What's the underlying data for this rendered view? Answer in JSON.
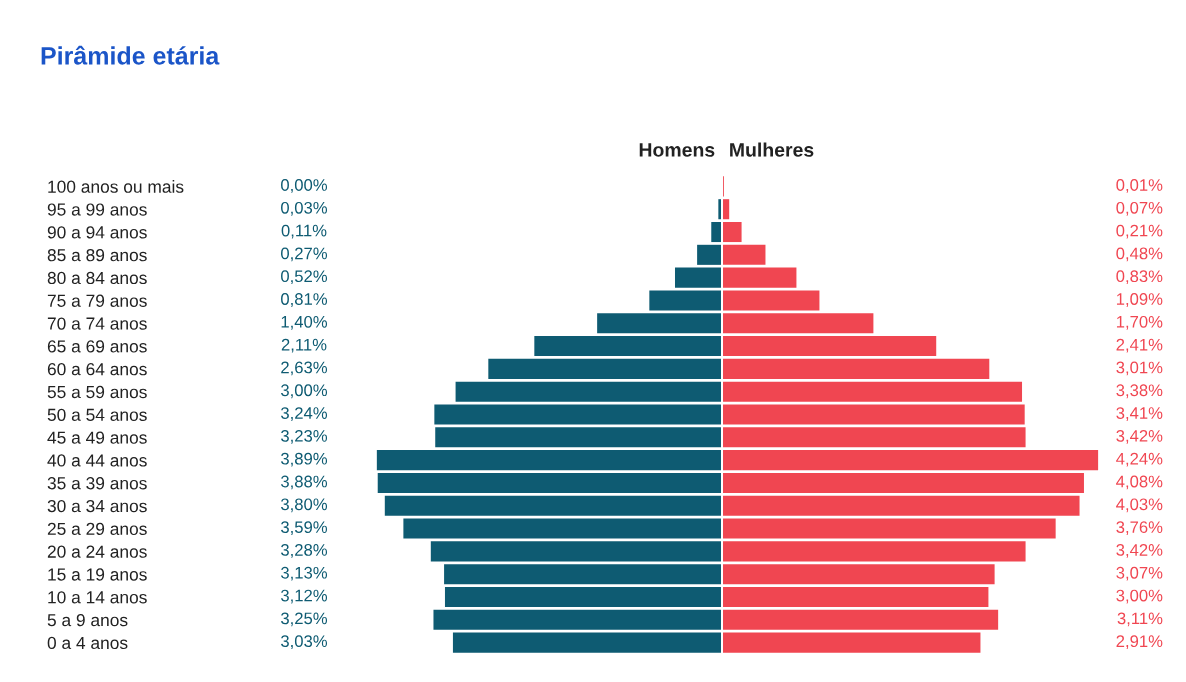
{
  "chart_data": [
    {
      "type": "bar",
      "orientation": "horizontal",
      "title": "Pirâmide etária",
      "categories": [
        "100 anos ou mais",
        "95 a 99 anos",
        "90 a 94 anos",
        "85 a 89 anos",
        "80 a 84 anos",
        "75 a 79 anos",
        "70 a 74 anos",
        "65 a 69 anos",
        "60 a 64 anos",
        "55 a 59 anos",
        "50 a 54 anos",
        "45 a 49 anos",
        "40 a 44 anos",
        "35 a 39 anos",
        "30 a 34 anos",
        "25 a 29 anos",
        "20 a 24 anos",
        "15 a 19 anos",
        "10 a 14 anos",
        "5 a 9 anos",
        "0 a 4 anos"
      ],
      "series": [
        {
          "name": "Homens",
          "color": "#0e5b72",
          "values": [
            0.0,
            0.03,
            0.11,
            0.27,
            0.52,
            0.81,
            1.4,
            2.11,
            2.63,
            3.0,
            3.24,
            3.23,
            3.89,
            3.88,
            3.8,
            3.59,
            3.28,
            3.13,
            3.12,
            3.25,
            3.03
          ],
          "value_labels": [
            "0,00%",
            "0,03%",
            "0,11%",
            "0,27%",
            "0,52%",
            "0,81%",
            "1,40%",
            "2,11%",
            "2,63%",
            "3,00%",
            "3,24%",
            "3,23%",
            "3,89%",
            "3,88%",
            "3,80%",
            "3,59%",
            "3,28%",
            "3,13%",
            "3,12%",
            "3,25%",
            "3,03%"
          ]
        }
      ]
    },
    {
      "type": "bar",
      "orientation": "horizontal",
      "categories": [
        null,
        null,
        null,
        null,
        null,
        null,
        null,
        null,
        null,
        null,
        null,
        null,
        null,
        null,
        null,
        null,
        null,
        null,
        null,
        null,
        null
      ],
      "series": [
        {
          "name": "Mulheres",
          "color": "#f04651",
          "values": [
            0.01,
            0.07,
            0.21,
            0.48,
            0.83,
            1.09,
            1.7,
            2.41,
            3.01,
            3.38,
            3.41,
            3.42,
            4.24,
            4.08,
            4.03,
            3.76,
            3.42,
            3.07,
            3.0,
            3.11,
            2.91
          ],
          "value_labels": [
            "0,01%",
            "0,07%",
            "0,21%",
            "0,48%",
            "0,83%",
            "1,09%",
            "1,70%",
            "2,41%",
            "3,01%",
            "3,38%",
            "3,41%",
            "3,42%",
            "4,24%",
            "4,08%",
            "4,03%",
            "3,76%",
            "3,42%",
            "3,07%",
            "3,00%",
            "3,11%",
            "2,91%"
          ]
        }
      ]
    }
  ]
}
